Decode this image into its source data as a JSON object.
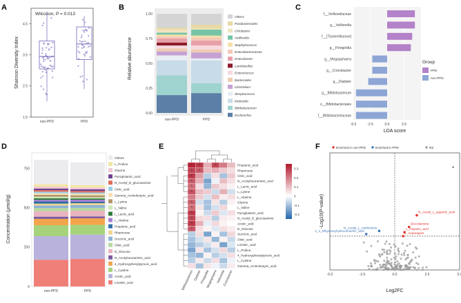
{
  "chart_data": [
    {
      "panel": "A",
      "type": "boxplot",
      "annotation": "Wilcoxon, P = 0.013",
      "categories": [
        "non-PPD",
        "PPD"
      ],
      "ylabel": "Shannon Diversity Index",
      "ylim": [
        1.5,
        5.0
      ],
      "yticks": [
        "1.5",
        "2.5",
        "3.5",
        "4.5"
      ],
      "yticks_values": [
        1.5,
        2.5,
        3.5,
        4.5
      ],
      "series": [
        {
          "name": "non-PPD",
          "q1": 3.05,
          "median": 3.45,
          "q3": 3.95,
          "whisker_low": 2.0,
          "whisker_high": 4.9
        },
        {
          "name": "PPD",
          "q1": 3.35,
          "median": 3.85,
          "q3": 4.4,
          "whisker_low": 2.4,
          "whisker_high": 4.75
        }
      ]
    },
    {
      "panel": "B",
      "type": "stacked_bar",
      "ylabel": "Relative abundance",
      "ylim": [
        0,
        1.0
      ],
      "yticks": [
        "0.00",
        "0.25",
        "0.50",
        "0.75",
        "1.00"
      ],
      "yticks_values": [
        0,
        0.25,
        0.5,
        0.75,
        1.0
      ],
      "categories": [
        "non-PPD",
        "PPD"
      ],
      "series": [
        {
          "name": "Escherichia",
          "color": "#5b7fa6",
          "values": [
            0.18,
            0.2
          ]
        },
        {
          "name": "Bifidobacterium",
          "color": "#9fd3cf",
          "values": [
            0.2,
            0.1
          ]
        },
        {
          "name": "Klebsiella",
          "color": "#c8dbe8",
          "values": [
            0.15,
            0.23
          ]
        },
        {
          "name": "Streptococcus",
          "color": "#e8eef4",
          "values": [
            0.05,
            0.02
          ]
        },
        {
          "name": "Clostridium",
          "color": "#c6a2d4",
          "values": [
            0.04,
            0.06
          ]
        },
        {
          "name": "Bacteroides",
          "color": "#f0cbb0",
          "values": [
            0.03,
            0.03
          ]
        },
        {
          "name": "Enterococcus",
          "color": "#f8d9e0",
          "values": [
            0.03,
            0.04
          ]
        },
        {
          "name": "Lactobacillus",
          "color": "#8c1c2c",
          "values": [
            0.03,
            0.0
          ]
        },
        {
          "name": "Enterobacter",
          "color": "#e8a0a8",
          "values": [
            0.04,
            0.05
          ]
        },
        {
          "name": "Enterobacteriaceae",
          "color": "#f4c9b8",
          "values": [
            0.02,
            0.03
          ]
        },
        {
          "name": "Staphylococcus",
          "color": "#f6e0a8",
          "values": [
            0.02,
            0.02
          ]
        },
        {
          "name": "Veillonella",
          "color": "#76c4a6",
          "values": [
            0.02,
            0.06
          ]
        },
        {
          "name": "Citrobacter",
          "color": "#f1e4c0",
          "values": [
            0.03,
            0.01
          ]
        },
        {
          "name": "Parabacteroides",
          "color": "#e7d9a4",
          "values": [
            0.02,
            0.04
          ]
        },
        {
          "name": "Others",
          "color": "#d4d4d4",
          "values": [
            0.14,
            0.11
          ]
        }
      ]
    },
    {
      "panel": "C",
      "type": "bar",
      "orientation": "horizontal",
      "xlabel": "LDA score",
      "xlim": [
        -5.0,
        5.0
      ],
      "xticks": [
        "-5.0",
        "-2.5",
        "0.0",
        "2.5"
      ],
      "xticks_values": [
        -5.0,
        -2.5,
        0.0,
        2.5
      ],
      "legend_title": "Group",
      "legend": [
        {
          "name": "PPD",
          "color": "#b382c9"
        },
        {
          "name": "non-PPD",
          "color": "#8ea6d6"
        }
      ],
      "bars": [
        {
          "label": "f__Veillonellaceae",
          "value": 4.1,
          "group": "PPD"
        },
        {
          "label": "g__Veillonella",
          "value": 4.1,
          "group": "PPD"
        },
        {
          "label": "f__[Tissierellaceae]",
          "value": 3.7,
          "group": "PPD"
        },
        {
          "label": "g__Finegoldia",
          "value": 3.5,
          "group": "PPD"
        },
        {
          "label": "g__Megasphaera",
          "value": -2.2,
          "group": "non-PPD"
        },
        {
          "label": "g__Cronobacter",
          "value": -2.2,
          "group": "non-PPD"
        },
        {
          "label": "g__Dialister",
          "value": -2.8,
          "group": "non-PPD"
        },
        {
          "label": "g__Bifidobacterium",
          "value": -4.6,
          "group": "non-PPD"
        },
        {
          "label": "o__Bifidobacteriales",
          "value": -4.6,
          "group": "non-PPD"
        },
        {
          "label": "f__Bifidobacteriaceae",
          "value": -4.6,
          "group": "non-PPD"
        }
      ]
    },
    {
      "panel": "D",
      "type": "stacked_bar",
      "ylabel": "Concentration (μmol/g)",
      "ylim": [
        0,
        850
      ],
      "yticks": [
        "0",
        "250",
        "500",
        "750"
      ],
      "yticks_values": [
        0,
        250,
        500,
        750
      ],
      "categories": [
        "non-PPD",
        "PPD"
      ],
      "series": [
        {
          "name": "Linoleic_acid",
          "color": "#f07f78",
          "values": [
            170,
            175
          ]
        },
        {
          "name": "Acetic_acid",
          "color": "#b8b2dc",
          "values": [
            150,
            155
          ]
        },
        {
          "name": "L_Cystine",
          "color": "#a6d27c",
          "values": [
            70,
            62
          ]
        },
        {
          "name": "4_Hydroxyphenylpyruvic_acid",
          "color": "#f3a54b",
          "values": [
            40,
            42
          ]
        },
        {
          "name": "N_Acetylneuraminic_acid",
          "color": "#7c5a9e",
          "values": [
            14,
            12
          ]
        },
        {
          "name": "D_Glucose",
          "color": "#e9b4c0",
          "values": [
            35,
            36
          ]
        },
        {
          "name": "Oleic_acid",
          "color": "#b5d9a0",
          "values": [
            20,
            18
          ]
        },
        {
          "name": "Succinic_acid",
          "color": "#8bb4d6",
          "values": [
            16,
            18
          ]
        },
        {
          "name": "Rhamnose",
          "color": "#f2d48c",
          "values": [
            12,
            12
          ]
        },
        {
          "name": "Propionic_acid",
          "color": "#2f6ea6",
          "values": [
            14,
            10
          ]
        },
        {
          "name": "L_Alanine",
          "color": "#a77ed1",
          "values": [
            10,
            12
          ]
        },
        {
          "name": "L_Lactic_acid",
          "color": "#2d7a3a",
          "values": [
            10,
            8
          ]
        },
        {
          "name": "L_Valine",
          "color": "#cfe8b8",
          "values": [
            10,
            8
          ]
        },
        {
          "name": "L_Lysine",
          "color": "#b2966a",
          "values": [
            12,
            12
          ]
        },
        {
          "name": "Gamma_Aminobutyric_acid",
          "color": "#f9dfb0",
          "values": [
            10,
            10
          ]
        },
        {
          "name": "Citric_acid",
          "color": "#9ad0e8",
          "values": [
            10,
            8
          ]
        },
        {
          "name": "N_Acetyl_D_glucosamine",
          "color": "#e06b5a",
          "values": [
            10,
            10
          ]
        },
        {
          "name": "Pyroglutamic_acid",
          "color": "#6c3f8e",
          "values": [
            10,
            10
          ]
        },
        {
          "name": "Glycine",
          "color": "#f1c6d4",
          "values": [
            12,
            12
          ]
        },
        {
          "name": "L_Proline",
          "color": "#f4e6a4",
          "values": [
            15,
            14
          ]
        },
        {
          "name": "Others",
          "color": "#ececee",
          "values": [
            155,
            145
          ]
        }
      ]
    },
    {
      "panel": "E",
      "type": "heatmap",
      "columns": [
        "Bifidobacterium",
        "Dialister",
        "Finegoldia",
        "Megasphaera",
        "Veillonella",
        "Cronobacter"
      ],
      "rows": [
        "Propionic_acid",
        "Rhamnose",
        "Citric_acid",
        "N_Acetylneuraminic_acid",
        "L_Lactic_acid",
        "L_Lysine",
        "L_Alanine",
        "Glycine",
        "L_Valine",
        "Pyroglutamic_acid",
        "N_Acetyl_D_glucosamine",
        "Acetic_acid",
        "D_Glucose",
        "Succinic_acid",
        "Oleic_acid",
        "Linoleic_acid",
        "L_Proline",
        "4_Hydroxyphenylpyruvic_acid",
        "L_Cystine",
        "Gamma_Aminobutyric_acid"
      ],
      "values": [
        [
          0.33,
          0.3,
          0.12,
          0.28,
          0.2,
          0.1
        ],
        [
          0.28,
          0.25,
          0.1,
          0.12,
          0.08,
          0.05
        ],
        [
          0.3,
          0.15,
          -0.08,
          0.05,
          -0.1,
          0.08
        ],
        [
          0.25,
          0.12,
          -0.15,
          -0.02,
          0.1,
          0.05
        ],
        [
          0.22,
          0.05,
          -0.12,
          0.08,
          0.05,
          0.02
        ],
        [
          0.26,
          0.1,
          0.08,
          -0.06,
          0.12,
          -0.05
        ],
        [
          0.2,
          0.08,
          -0.05,
          0.1,
          0.03,
          0.05
        ],
        [
          0.24,
          -0.05,
          -0.1,
          0.04,
          -0.08,
          0.02
        ],
        [
          0.22,
          0.04,
          -0.1,
          -0.05,
          0.06,
          0.0
        ],
        [
          0.3,
          0.02,
          -0.06,
          0.08,
          -0.04,
          0.05
        ],
        [
          0.28,
          0.06,
          0.05,
          -0.08,
          0.03,
          0.02
        ],
        [
          0.3,
          0.12,
          -0.03,
          0.06,
          0.02,
          0.0
        ],
        [
          0.25,
          0.05,
          0.02,
          -0.04,
          0.05,
          0.03
        ],
        [
          -0.08,
          0.05,
          -0.15,
          0.02,
          -0.1,
          0.06
        ],
        [
          -0.1,
          -0.05,
          0.04,
          -0.12,
          0.02,
          -0.06
        ],
        [
          -0.12,
          -0.08,
          -0.05,
          0.03,
          -0.15,
          -0.04
        ],
        [
          -0.15,
          0.04,
          -0.1,
          -0.05,
          0.06,
          -0.08
        ],
        [
          -0.1,
          -0.12,
          0.02,
          -0.08,
          -0.05,
          0.05
        ],
        [
          -0.08,
          0.03,
          -0.06,
          0.05,
          -0.1,
          -0.02
        ],
        [
          0.05,
          -0.1,
          0.04,
          -0.02,
          -0.06,
          0.03
        ]
      ],
      "scale_ticks": [
        "0.3",
        "0.2",
        "0.1",
        "0",
        "-0.1",
        "-0.2"
      ],
      "scale_ticks_values": [
        0.3,
        0.2,
        0.1,
        0,
        -0.1,
        -0.2
      ],
      "scale_range": [
        -0.25,
        0.35
      ]
    },
    {
      "panel": "F",
      "type": "scatter",
      "xlabel": "Log2FC",
      "ylabel": "-Log10(P-value)",
      "xlim": [
        -5.0,
        5.0
      ],
      "ylim": [
        0,
        4.5
      ],
      "xticks": [
        "-5.0",
        "-2.5",
        "0.0",
        "2.5",
        "5.0"
      ],
      "xticks_values": [
        -5.0,
        -2.5,
        0.0,
        2.5,
        5.0
      ],
      "legend": [
        {
          "name": "Enriched in non-PPD",
          "color": "#e4332b"
        },
        {
          "name": "Enriched in PPD",
          "color": "#3e76b5"
        },
        {
          "name": "NS",
          "color": "#9a9a9a"
        }
      ],
      "threshold_p": 1.3,
      "labeled_points": [
        {
          "label": "N_Acetyl_L_aspartic_acid",
          "x": 1.7,
          "y": 2.1,
          "group": "Enriched in non-PPD"
        },
        {
          "label": "Glucolactone",
          "x": 1.1,
          "y": 1.65,
          "group": "Enriched in non-PPD"
        },
        {
          "label": "L_Aspartic_acid",
          "x": 0.75,
          "y": 1.45,
          "group": "Enriched in non-PPD"
        },
        {
          "label": "L_Asparagine",
          "x": 0.65,
          "y": 1.3,
          "group": "Enriched in non-PPD"
        },
        {
          "label": "N_Acetyl_L_methionine",
          "x": -1.2,
          "y": 1.5,
          "group": "Enriched in PPD"
        },
        {
          "label": "2_4_Dihydroxyhydrocinnamic_acid",
          "x": -2.2,
          "y": 1.38,
          "group": "Enriched in PPD"
        }
      ]
    }
  ]
}
